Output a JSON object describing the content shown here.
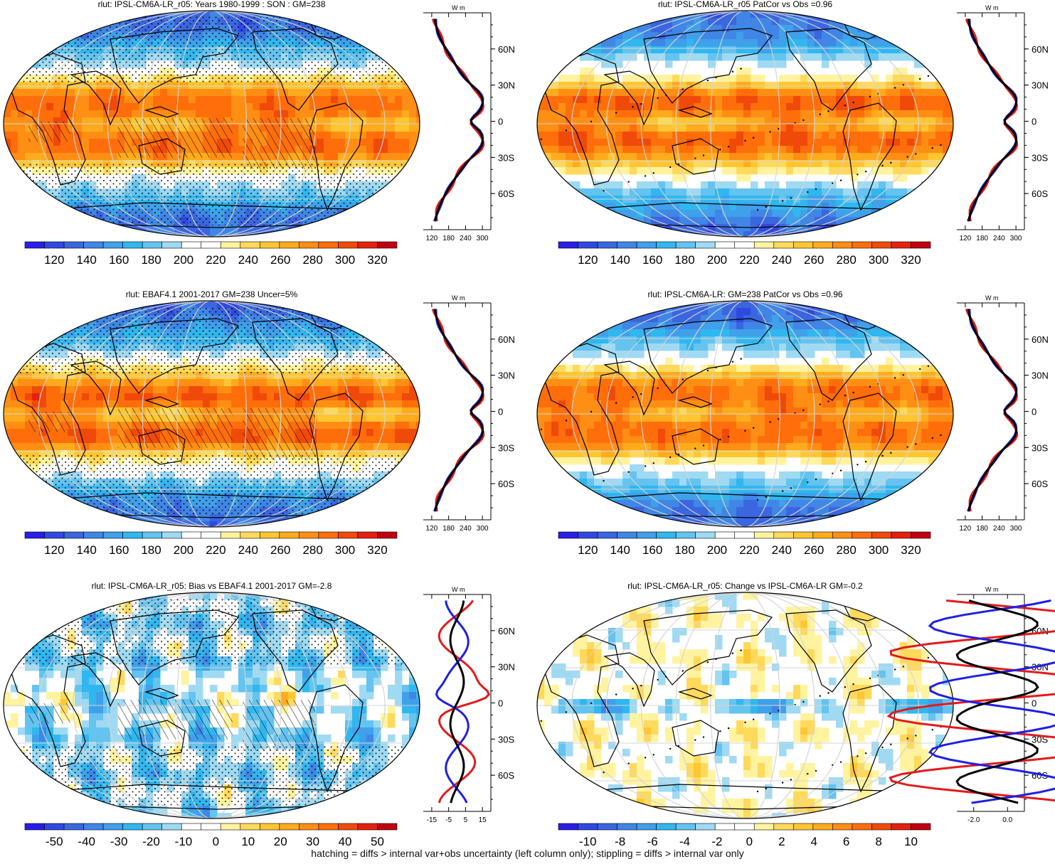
{
  "colors": {
    "sequential": [
      "#2a1ee6",
      "#2f49e0",
      "#3a66e0",
      "#3f86e6",
      "#40a0ea",
      "#30b7ef",
      "#64c3ef",
      "#9fdaf2",
      "#ffffff",
      "#ffffff",
      "#fff3a0",
      "#ffd95c",
      "#ffc632",
      "#ffab1e",
      "#ff8f14",
      "#ff6e0a",
      "#f04a0a",
      "#e42010",
      "#c00010"
    ],
    "diverging": [
      "#2a1ee6",
      "#2f49e0",
      "#3a66e0",
      "#3f86e6",
      "#40a0ea",
      "#30b7ef",
      "#64c3ef",
      "#9fdaf2",
      "#ffffff",
      "#ffffff",
      "#fff3a0",
      "#ffd95c",
      "#ffc632",
      "#ffab1e",
      "#ff8f14",
      "#ff6e0a",
      "#f04a0a",
      "#e42010",
      "#c00010"
    ],
    "line_obs": "#e31a1c",
    "line_model": "#1f1fe6",
    "line_mmm": "#000000"
  },
  "panels": [
    {
      "title": "rlut: IPSL-CM6A-LR_r05: Years 1980-1999 : SON : GM=238",
      "field": "sequential",
      "hatch": true,
      "stipple": "dense",
      "colorbar_labels": [
        "120",
        "140",
        "160",
        "180",
        "200",
        "220",
        "240",
        "260",
        "280",
        "300",
        "320"
      ],
      "profile": {
        "unit": "W m",
        "xticks": [
          "120",
          "180",
          "240",
          "300"
        ],
        "lat_labels": [
          "60N",
          "30N",
          "0",
          "30S",
          "60S"
        ],
        "range": [
          120,
          300
        ]
      }
    },
    {
      "title": "rlut: IPSL-CM6A-LR_r05 PatCor vs Obs =0.96",
      "field": "sequential",
      "hatch": false,
      "stipple": "sparse",
      "colorbar_labels": [
        "120",
        "140",
        "160",
        "180",
        "200",
        "220",
        "240",
        "260",
        "280",
        "300",
        "320"
      ],
      "profile": {
        "unit": "W m",
        "xticks": [
          "120",
          "180",
          "240",
          "300"
        ],
        "lat_labels": [
          "60N",
          "30N",
          "0",
          "30S",
          "60S"
        ],
        "range": [
          120,
          300
        ]
      }
    },
    {
      "title": "rlut: EBAF4.1 2001-2017 GM=238 Uncer=5%",
      "field": "sequential",
      "hatch": true,
      "stipple": "dense",
      "colorbar_labels": [
        "120",
        "140",
        "160",
        "180",
        "200",
        "220",
        "240",
        "260",
        "280",
        "300",
        "320"
      ],
      "profile": {
        "unit": "W m",
        "xticks": [
          "120",
          "180",
          "240",
          "300"
        ],
        "lat_labels": [
          "60N",
          "30N",
          "0",
          "30S",
          "60S"
        ],
        "range": [
          120,
          300
        ]
      }
    },
    {
      "title": "rlut: IPSL-CM6A-LR: GM=238 PatCor vs Obs =0.96",
      "field": "sequential",
      "hatch": false,
      "stipple": "sparse",
      "colorbar_labels": [
        "120",
        "140",
        "160",
        "180",
        "200",
        "220",
        "240",
        "260",
        "280",
        "300",
        "320"
      ],
      "profile": {
        "unit": "W m",
        "xticks": [
          "120",
          "180",
          "240",
          "300"
        ],
        "lat_labels": [
          "60N",
          "30N",
          "0",
          "30S",
          "60S"
        ],
        "range": [
          120,
          300
        ]
      }
    },
    {
      "title": "rlut: IPSL-CM6A-LR_r05: Bias vs EBAF4.1 2001-2017  GM=-2.8",
      "field": "bias",
      "hatch": true,
      "stipple": "dense",
      "colorbar_labels": [
        "-50",
        "-40",
        "-30",
        "-20",
        "-10",
        "0",
        "10",
        "20",
        "30",
        "40",
        "50"
      ],
      "profile": {
        "unit": "W m",
        "xticks": [
          "-15",
          "-5",
          "5",
          "15"
        ],
        "lat_labels": [
          "60N",
          "30N",
          "0",
          "30S",
          "60S"
        ],
        "range": [
          -15,
          15
        ]
      }
    },
    {
      "title": "rlut: IPSL-CM6A-LR_r05: Change vs IPSL-CM6A-LR GM=-0.2",
      "field": "change",
      "hatch": false,
      "stipple": "sparse",
      "colorbar_labels": [
        "-10",
        "-8",
        "-6",
        "-4",
        "-2",
        "0",
        "2",
        "4",
        "6",
        "8",
        "10"
      ],
      "profile": {
        "unit": "W m",
        "xticks": [
          "-2.0",
          "0.0"
        ],
        "lat_labels": [
          "60N",
          "30N",
          "0",
          "30S",
          "60S"
        ],
        "range": [
          -3,
          2
        ]
      }
    }
  ],
  "footnote": "hatching = diffs > internal var+obs uncertainty (left column only); stippling = diffs > internal var only"
}
